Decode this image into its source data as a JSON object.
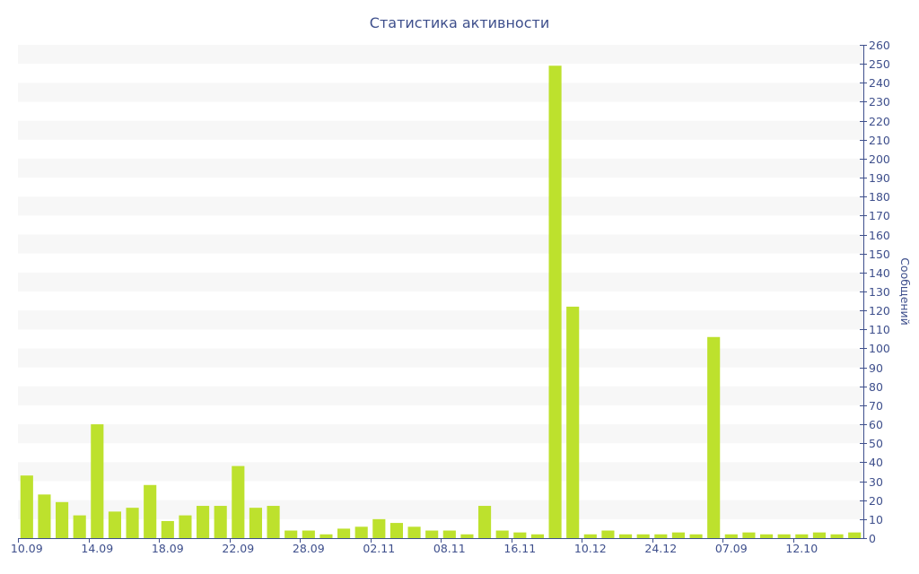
{
  "chart_data": {
    "type": "bar",
    "title": "Статистика активности",
    "xlabel": "",
    "ylabel": "Сообщений",
    "ylim": [
      0,
      260
    ],
    "y_tick_step": 10,
    "y_axis_position": "right",
    "grid": "horizontal-bands",
    "legend": "none",
    "x_tick_labels": [
      {
        "index": 0,
        "label": "10.09"
      },
      {
        "index": 4,
        "label": "14.09"
      },
      {
        "index": 8,
        "label": "18.09"
      },
      {
        "index": 12,
        "label": "22.09"
      },
      {
        "index": 16,
        "label": "28.09"
      },
      {
        "index": 20,
        "label": "02.11"
      },
      {
        "index": 24,
        "label": "08.11"
      },
      {
        "index": 28,
        "label": "16.11"
      },
      {
        "index": 32,
        "label": "10.12"
      },
      {
        "index": 36,
        "label": "24.12"
      },
      {
        "index": 40,
        "label": "07.09"
      },
      {
        "index": 44,
        "label": "12.10"
      }
    ],
    "values": [
      33,
      23,
      19,
      12,
      60,
      14,
      16,
      28,
      9,
      12,
      17,
      17,
      38,
      16,
      17,
      4,
      4,
      2,
      5,
      6,
      10,
      8,
      6,
      4,
      4,
      2,
      17,
      4,
      3,
      2,
      249,
      122,
      2,
      4,
      2,
      2,
      2,
      3,
      2,
      106,
      2,
      3,
      2,
      2,
      2,
      3,
      2,
      3
    ]
  },
  "colors": {
    "bar": "#bde12d",
    "text": "#3e4f8c",
    "band": "#f7f7f7",
    "axis": "#3e4f8c"
  }
}
